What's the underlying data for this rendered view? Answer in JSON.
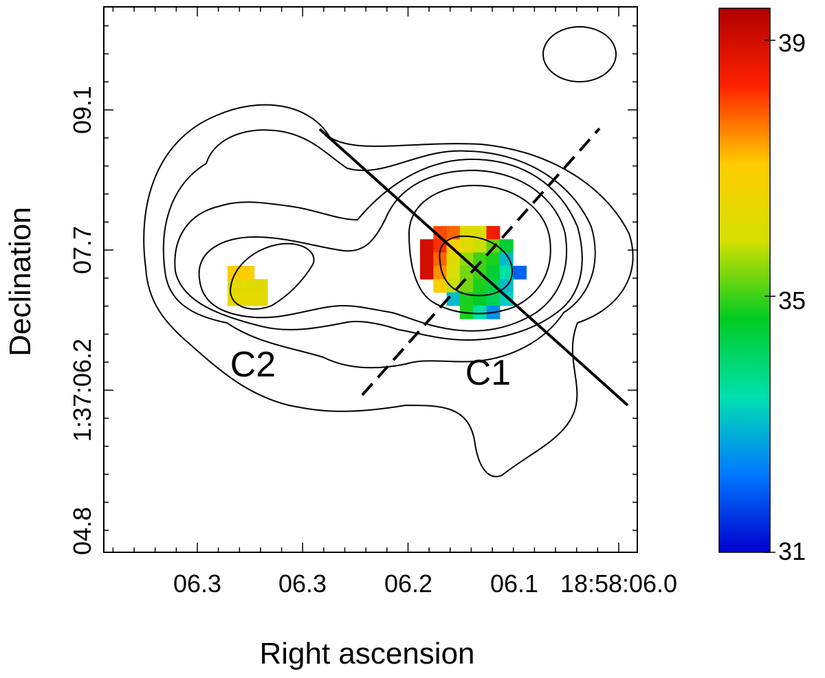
{
  "chart_data": {
    "type": "heatmap",
    "title": "",
    "xlabel": "Right ascension",
    "ylabel": "Declination",
    "x_tick_labels": [
      "06.3",
      "06.3",
      "06.2",
      "06.1",
      "18:58:06.0"
    ],
    "y_tick_labels": [
      "04.8",
      "1:37:06.2",
      "07.7",
      "09.1"
    ],
    "colorbar": {
      "min": 31,
      "max": 39.5,
      "ticks": [
        31,
        35,
        39
      ],
      "tick_labels": [
        "31",
        "35",
        "39"
      ],
      "colormap": [
        "#0000cc",
        "#0078ff",
        "#00e0b0",
        "#00cc22",
        "#d4e000",
        "#ffcc00",
        "#ff2200",
        "#b00000"
      ]
    },
    "annotations": [
      {
        "id": "c1",
        "text": "C1"
      },
      {
        "id": "c2",
        "text": "C2"
      }
    ],
    "features": {
      "contour_levels_shown": 6,
      "beam_ellipse": "top-right",
      "solid_line": "cut through C1, oriented NW-SE",
      "dashed_line": "cut through C1, oriented NE-SW"
    },
    "pixels": [
      {
        "x": 0,
        "y": 0,
        "v": 37.0
      },
      {
        "x": 1,
        "y": 0,
        "v": 37.0
      },
      {
        "x": 0,
        "y": 1,
        "v": 36.2
      },
      {
        "x": 1,
        "y": 1,
        "v": 36.2
      },
      {
        "x": 2,
        "y": 1,
        "v": 36.2
      },
      {
        "x": 0,
        "y": 2,
        "v": 36.3
      },
      {
        "x": 1,
        "y": 2,
        "v": 36.3
      },
      {
        "x": 2,
        "y": 2,
        "v": 36.3
      },
      {
        "x": 10,
        "y": 0,
        "v": 38.0
      },
      {
        "x": 11,
        "y": 0,
        "v": 37.8
      },
      {
        "x": 12,
        "y": 0,
        "v": 36.2
      },
      {
        "x": 13,
        "y": 0,
        "v": 36.0
      },
      {
        "x": 14,
        "y": 0,
        "v": 38.5
      },
      {
        "x": 9,
        "y": 1,
        "v": 39.0
      },
      {
        "x": 10,
        "y": 1,
        "v": 38.2
      },
      {
        "x": 11,
        "y": 1,
        "v": 37.0
      },
      {
        "x": 12,
        "y": 1,
        "v": 36.2
      },
      {
        "x": 13,
        "y": 1,
        "v": 35.8
      },
      {
        "x": 14,
        "y": 1,
        "v": 35.2
      },
      {
        "x": 15,
        "y": 1,
        "v": 34.5
      },
      {
        "x": 9,
        "y": 2,
        "v": 39.0
      },
      {
        "x": 10,
        "y": 2,
        "v": 37.8
      },
      {
        "x": 11,
        "y": 2,
        "v": 36.2
      },
      {
        "x": 12,
        "y": 2,
        "v": 35.5
      },
      {
        "x": 13,
        "y": 2,
        "v": 35.0
      },
      {
        "x": 14,
        "y": 2,
        "v": 34.8
      },
      {
        "x": 15,
        "y": 2,
        "v": 33.0
      },
      {
        "x": 9,
        "y": 3,
        "v": 39.0
      },
      {
        "x": 10,
        "y": 3,
        "v": 37.5
      },
      {
        "x": 11,
        "y": 3,
        "v": 36.0
      },
      {
        "x": 12,
        "y": 3,
        "v": 35.3
      },
      {
        "x": 13,
        "y": 3,
        "v": 35.0
      },
      {
        "x": 14,
        "y": 3,
        "v": 34.5
      },
      {
        "x": 15,
        "y": 3,
        "v": 33.5
      },
      {
        "x": 16,
        "y": 3,
        "v": 32.0
      },
      {
        "x": 10,
        "y": 4,
        "v": 37.0
      },
      {
        "x": 11,
        "y": 4,
        "v": 35.8
      },
      {
        "x": 12,
        "y": 4,
        "v": 35.3
      },
      {
        "x": 13,
        "y": 4,
        "v": 34.8
      },
      {
        "x": 14,
        "y": 4,
        "v": 34.3
      },
      {
        "x": 15,
        "y": 4,
        "v": 33.0
      },
      {
        "x": 11,
        "y": 5,
        "v": 33.0
      },
      {
        "x": 12,
        "y": 5,
        "v": 34.8
      },
      {
        "x": 13,
        "y": 5,
        "v": 34.6
      },
      {
        "x": 14,
        "y": 5,
        "v": 34.2
      },
      {
        "x": 15,
        "y": 5,
        "v": 33.2
      },
      {
        "x": 12,
        "y": 6,
        "v": 34.8
      },
      {
        "x": 13,
        "y": 6,
        "v": 33.5
      },
      {
        "x": 14,
        "y": 6,
        "v": 32.5
      }
    ]
  }
}
